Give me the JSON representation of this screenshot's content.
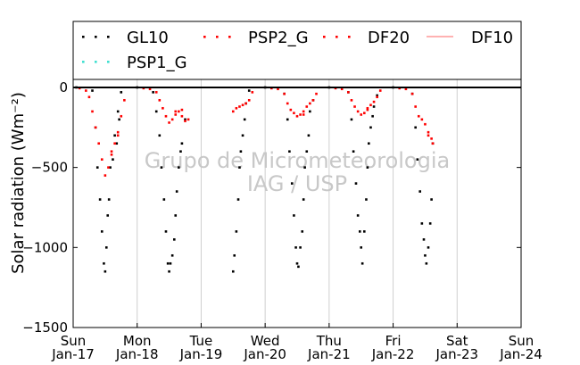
{
  "chart_data": {
    "type": "scatter",
    "ylabel": "Solar radiation (Wm⁻²)",
    "ylim": [
      -1500,
      50
    ],
    "xlim": [
      0,
      7
    ],
    "y_ticks": [
      0,
      -500,
      -1000,
      -1500
    ],
    "y_tick_labels": [
      "0",
      "−500",
      "−1000",
      "−1500"
    ],
    "x_ticks": [
      0,
      1,
      2,
      3,
      4,
      5,
      6,
      7
    ],
    "x_tick_labels": [
      [
        "Sun",
        "Jan-17"
      ],
      [
        "Mon",
        "Jan-18"
      ],
      [
        "Tue",
        "Jan-19"
      ],
      [
        "Wed",
        "Jan-20"
      ],
      [
        "Thu",
        "Jan-21"
      ],
      [
        "Fri",
        "Jan-22"
      ],
      [
        "Sat",
        "Jan-23"
      ],
      [
        "Sun",
        "Jan-24"
      ]
    ],
    "grid": "vertical",
    "legend_position": "top",
    "watermark": [
      "Grupo de Micrometeorologia",
      "IAG / USP"
    ],
    "series": [
      {
        "name": "GL10",
        "style": "points",
        "color": "#000000",
        "x": [
          0.05,
          0.3,
          0.35,
          0.38,
          0.42,
          0.45,
          0.48,
          0.5,
          0.52,
          0.54,
          0.56,
          0.58,
          0.62,
          0.65,
          0.68,
          0.7,
          0.72,
          0.75,
          1.0,
          1.25,
          1.3,
          1.35,
          1.38,
          1.42,
          1.45,
          1.48,
          1.5,
          1.52,
          1.55,
          1.58,
          1.6,
          1.62,
          1.65,
          1.68,
          1.7,
          1.75,
          2.5,
          2.52,
          2.55,
          2.58,
          2.6,
          2.62,
          2.65,
          2.68,
          2.7,
          2.75,
          3.0,
          3.3,
          3.35,
          3.38,
          3.42,
          3.45,
          3.48,
          3.5,
          3.52,
          3.55,
          3.58,
          3.6,
          3.62,
          3.65,
          3.68,
          3.7,
          3.75,
          4.0,
          4.3,
          4.35,
          4.38,
          4.42,
          4.45,
          4.48,
          4.5,
          4.52,
          4.55,
          4.58,
          4.6,
          4.62,
          4.65,
          4.68,
          4.7,
          4.75,
          5.0,
          5.3,
          5.35,
          5.38,
          5.42,
          5.45,
          5.48,
          5.5,
          5.52,
          5.55,
          5.58,
          5.6,
          5.62
        ],
        "y": [
          0,
          -20,
          -250,
          -500,
          -700,
          -900,
          -1100,
          -1150,
          -1000,
          -800,
          -700,
          -500,
          -450,
          -300,
          -350,
          -150,
          -200,
          -30,
          0,
          -30,
          -150,
          -300,
          -500,
          -700,
          -900,
          -1100,
          -1150,
          -1100,
          -1050,
          -950,
          -800,
          -650,
          -500,
          -400,
          -350,
          -200,
          -1150,
          -1050,
          -900,
          -700,
          -500,
          -400,
          -300,
          -200,
          -100,
          -20,
          0,
          -40,
          -200,
          -400,
          -600,
          -800,
          -1000,
          -1100,
          -1120,
          -1000,
          -900,
          -700,
          -500,
          -400,
          -300,
          -150,
          -80,
          0,
          -30,
          -200,
          -400,
          -600,
          -800,
          -900,
          -1000,
          -1100,
          -900,
          -700,
          -500,
          -350,
          -250,
          -180,
          -120,
          -50,
          0,
          -40,
          -250,
          -450,
          -650,
          -850,
          -950,
          -1050,
          -1100,
          -1000,
          -850,
          -700,
          -350
        ]
      },
      {
        "name": "PSP2_G",
        "style": "points",
        "color": "#ff0000",
        "x": [
          0.1,
          0.2,
          0.25,
          0.3,
          0.35,
          0.4,
          0.45,
          0.5,
          0.55,
          0.6,
          0.65,
          0.7,
          0.75,
          0.8,
          1.1,
          1.2,
          1.3,
          1.35,
          1.4,
          1.45,
          1.5,
          1.55,
          1.6,
          1.65,
          1.7,
          1.75,
          1.8,
          2.5,
          2.55,
          2.6,
          2.65,
          2.7,
          2.75,
          2.8,
          3.1,
          3.2,
          3.3,
          3.35,
          3.4,
          3.45,
          3.5,
          3.55,
          3.6,
          3.65,
          3.7,
          3.75,
          3.8,
          4.1,
          4.2,
          4.3,
          4.35,
          4.4,
          4.45,
          4.5,
          4.55,
          4.6,
          4.65,
          4.7,
          4.75,
          4.8,
          5.1,
          5.2,
          5.3,
          5.35,
          5.4,
          5.45,
          5.5,
          5.55,
          5.6,
          5.62
        ],
        "y": [
          -5,
          -20,
          -60,
          -150,
          -250,
          -350,
          -450,
          -550,
          -500,
          -420,
          -350,
          -280,
          -180,
          -80,
          -5,
          -10,
          -30,
          -80,
          -130,
          -180,
          -220,
          -200,
          -170,
          -150,
          -180,
          -210,
          -200,
          -150,
          -130,
          -120,
          -110,
          -100,
          -80,
          -30,
          -5,
          -10,
          -40,
          -100,
          -140,
          -160,
          -180,
          -170,
          -150,
          -120,
          -100,
          -80,
          -40,
          -5,
          -10,
          -30,
          -80,
          -120,
          -150,
          -170,
          -160,
          -140,
          -110,
          -90,
          -60,
          -20,
          -5,
          -10,
          -40,
          -120,
          -180,
          -200,
          -230,
          -280,
          -320,
          -350
        ]
      },
      {
        "name": "DF20",
        "style": "points",
        "color": "#ff0000",
        "x": [
          0.6,
          0.7,
          1.6,
          1.7,
          3.6,
          4.6,
          5.55
        ],
        "y": [
          -400,
          -300,
          -150,
          -140,
          -170,
          -130,
          -300
        ]
      },
      {
        "name": "DF10",
        "style": "line",
        "color": "#ff6666",
        "x": [],
        "y": []
      },
      {
        "name": "PSP1_G",
        "style": "points",
        "color": "#40e0d0",
        "x": [],
        "y": []
      }
    ]
  }
}
